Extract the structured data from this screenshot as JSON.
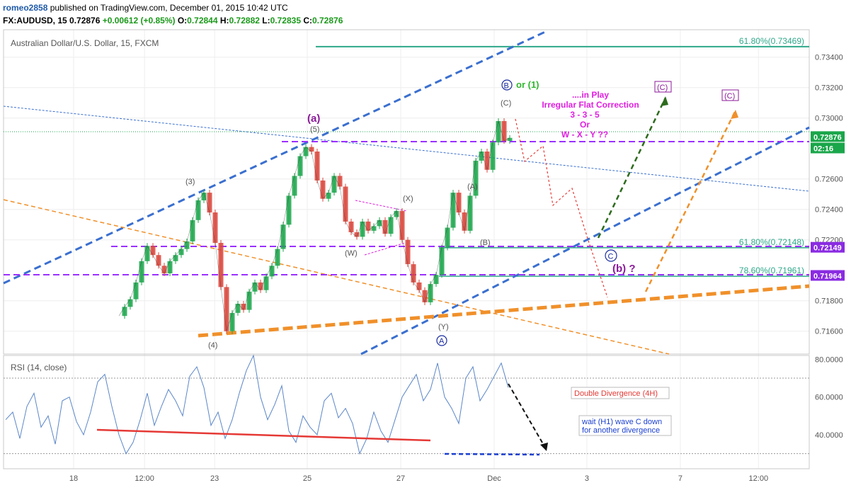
{
  "header": {
    "user": "romeo2858",
    "published": " published on TradingView.com, December 01, 2015 10:42 UTC",
    "symbol": "FX:AUDUSD, 15 ",
    "last": "0.72876 ",
    "change": "+0.00612 (+0.85%)",
    "o_label": " O:",
    "o_val": "0.72844",
    "h_label": " H:",
    "h_val": "0.72882",
    "l_label": " L:",
    "l_val": "0.72835",
    "c_label": " C:",
    "c_val": "0.72876"
  },
  "chart_data": {
    "type": "line",
    "title": "Australian Dollar/U.S. Dollar, 15, FXCM",
    "price_axis": {
      "ylim": [
        0.7145,
        0.7358
      ],
      "ticks": [
        "0.73400",
        "0.73200",
        "0.73000",
        "0.72600",
        "0.72400",
        "0.72200",
        "0.71800",
        "0.71600"
      ],
      "tick_values": [
        0.734,
        0.732,
        0.73,
        0.726,
        0.724,
        0.722,
        0.718,
        0.716
      ],
      "labels": [
        {
          "text": "0.72876",
          "value": 0.72876,
          "color": "#1aa64a"
        },
        {
          "text": "02:16",
          "value": 0.72801,
          "color": "#1aa64a"
        },
        {
          "text": "0.72149",
          "value": 0.72149,
          "color": "#8a2be2"
        },
        {
          "text": "0.71964",
          "value": 0.71964,
          "color": "#8a2be2"
        }
      ]
    },
    "time_axis": {
      "labels": [
        "18",
        "12:00",
        "23",
        "25",
        "27",
        "Dec",
        "3",
        "7",
        "12:00"
      ],
      "positions": [
        0.087,
        0.175,
        0.262,
        0.377,
        0.493,
        0.609,
        0.724,
        0.84,
        0.937
      ]
    },
    "price_series": [
      0.717,
      0.7176,
      0.7181,
      0.7192,
      0.7206,
      0.7216,
      0.721,
      0.7203,
      0.7198,
      0.7206,
      0.721,
      0.7214,
      0.7219,
      0.7233,
      0.7246,
      0.7251,
      0.7238,
      0.7218,
      0.7189,
      0.716,
      0.7172,
      0.7178,
      0.7174,
      0.7186,
      0.7192,
      0.7187,
      0.7196,
      0.7203,
      0.7214,
      0.723,
      0.7249,
      0.7262,
      0.7275,
      0.7281,
      0.7278,
      0.7259,
      0.7247,
      0.7251,
      0.7262,
      0.7255,
      0.7232,
      0.7225,
      0.7222,
      0.7232,
      0.7226,
      0.7229,
      0.7233,
      0.7224,
      0.7235,
      0.7239,
      0.722,
      0.7204,
      0.7192,
      0.7187,
      0.7179,
      0.7191,
      0.7197,
      0.7215,
      0.7228,
      0.7251,
      0.7238,
      0.7226,
      0.7249,
      0.7272,
      0.7278,
      0.7266,
      0.7284,
      0.7298,
      0.7285,
      0.7287
    ],
    "rsi": {
      "title": "RSI (14, close)",
      "ylim": [
        22,
        82
      ],
      "ticks": [
        "80.0000",
        "60.0000",
        "40.0000"
      ],
      "tick_values": [
        80,
        60,
        40
      ],
      "levels": [
        70,
        30
      ],
      "values": [
        48,
        52,
        38,
        55,
        62,
        44,
        50,
        35,
        58,
        60,
        47,
        40,
        52,
        68,
        72,
        55,
        40,
        30,
        36,
        48,
        62,
        45,
        55,
        64,
        58,
        50,
        71,
        76,
        65,
        45,
        52,
        38,
        48,
        62,
        74,
        82,
        60,
        48,
        56,
        66,
        42,
        36,
        50,
        44,
        40,
        58,
        62,
        49,
        54,
        46,
        30,
        38,
        52,
        42,
        36,
        48,
        60,
        66,
        72,
        58,
        64,
        78,
        60,
        54,
        46,
        70,
        76,
        58,
        64,
        71,
        78,
        65
      ]
    },
    "fib_levels": [
      {
        "label": "61.80%(0.73469)",
        "value": 0.73469
      },
      {
        "label": "61.80%(0.72148)",
        "value": 0.72148
      },
      {
        "label": "78.60%(0.71961)",
        "value": 0.71961
      }
    ],
    "wave_labels": [
      "(a)",
      "(5)",
      "(3)",
      "(4)",
      "(X)",
      "(W)",
      "(Y)",
      "(A)",
      "(B)",
      "(C)",
      "B",
      "or (1)",
      "A",
      "C",
      "(b) ?",
      "(C)",
      "(C)"
    ],
    "annotations": {
      "scenario": [
        "....in Play",
        "Irregular Flat Correction",
        "3 - 3 - 5",
        "Or",
        "W - X - Y ??"
      ],
      "double_divergence": "Double Divergence (4H)",
      "wait": [
        "wait (H1) wave C down",
        "for another divergence"
      ]
    },
    "colors": {
      "bull": "#1aa64a",
      "bear": "#d9443a",
      "trend_blue": "#3a6fcf",
      "orange": "#f0902a",
      "purple": "#9b30ff",
      "magenta": "#e020e0",
      "fib": "#2ea88a"
    }
  }
}
